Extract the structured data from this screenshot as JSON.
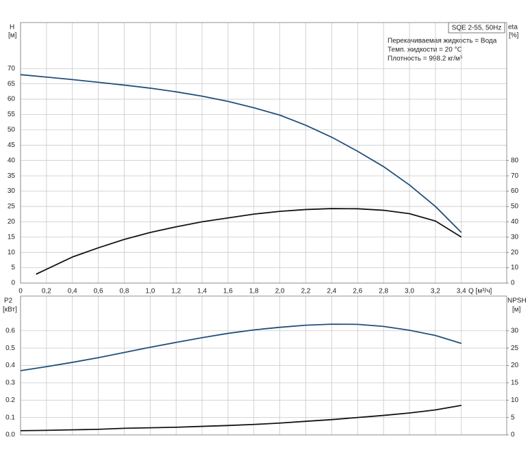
{
  "charts": [
    {
      "type": "line",
      "title": "SQE 2-55, 50Hz",
      "annotations": [
        "Перекачиваемая жидкость = Вода",
        "Темп. жидкости = 20 °C",
        "Плотность = 998.2 кг/м³"
      ],
      "ylabel": "H",
      "yunit": "[м]",
      "y2label": "eta",
      "y2unit": "[%]",
      "xlabel": "Q [м³/ч]",
      "xlim": [
        0,
        3.75
      ],
      "ylim": [
        0,
        85
      ],
      "y2lim": [
        0,
        170
      ],
      "xticks": [
        0,
        {
          "value": 0.2,
          "label": "0,2"
        },
        {
          "value": 0.4,
          "label": "0,4"
        },
        {
          "value": 0.6,
          "label": "0,6"
        },
        {
          "value": 0.8,
          "label": "0,8"
        },
        {
          "value": 1.0,
          "label": "1,0"
        },
        {
          "value": 1.2,
          "label": "1,2"
        },
        {
          "value": 1.4,
          "label": "1,4"
        },
        {
          "value": 1.6,
          "label": "1,6"
        },
        {
          "value": 1.8,
          "label": "1,8"
        },
        {
          "value": 2.0,
          "label": "2,0"
        },
        {
          "value": 2.2,
          "label": "2,2"
        },
        {
          "value": 2.4,
          "label": "2,4"
        },
        {
          "value": 2.6,
          "label": "2,6"
        },
        {
          "value": 2.8,
          "label": "2,8"
        },
        {
          "value": 3.0,
          "label": "3,0"
        },
        {
          "value": 3.2,
          "label": "3,2"
        },
        {
          "value": 3.4,
          "label": "3,4"
        }
      ],
      "yticks": [
        0,
        5,
        10,
        15,
        20,
        25,
        30,
        35,
        40,
        45,
        50,
        55,
        60,
        65,
        70
      ],
      "y2ticks": [
        0,
        10,
        20,
        30,
        40,
        50,
        60,
        70,
        80
      ],
      "show_xtick_labels": true,
      "grid": true,
      "series": [
        {
          "color": "#1f4e79",
          "x": [
            0,
            0.2,
            0.4,
            0.6,
            0.8,
            1.0,
            1.2,
            1.4,
            1.6,
            1.8,
            2.0,
            2.2,
            2.4,
            2.6,
            2.8,
            3.0,
            3.2,
            3.4
          ],
          "values": [
            68,
            67.2,
            66.4,
            65.5,
            64.6,
            63.6,
            62.4,
            61,
            59.3,
            57.2,
            54.8,
            51.5,
            47.6,
            43,
            38,
            32,
            25,
            16.5
          ]
        },
        {
          "color": "#111111",
          "axis": "y2",
          "x": [
            0.12,
            0.2,
            0.4,
            0.6,
            0.8,
            1.0,
            1.2,
            1.4,
            1.6,
            1.8,
            2.0,
            2.2,
            2.4,
            2.6,
            2.8,
            3.0,
            3.2,
            3.4
          ],
          "values": [
            5.8,
            9,
            17,
            23,
            28.5,
            33,
            36.7,
            40,
            42.5,
            45,
            46.8,
            48,
            48.6,
            48.5,
            47.5,
            45.3,
            40.5,
            30
          ]
        }
      ]
    },
    {
      "type": "line",
      "ylabel": "P2",
      "yunit": "[кВт]",
      "y2label": "NPSH",
      "y2unit": "[м]",
      "xlim": [
        0,
        3.75
      ],
      "ylim": [
        0,
        0.8
      ],
      "y2lim": [
        0,
        40
      ],
      "xticks": [
        0,
        0.2,
        0.4,
        0.6,
        0.8,
        1.0,
        1.2,
        1.4,
        1.6,
        1.8,
        2.0,
        2.2,
        2.4,
        2.6,
        2.8,
        3.0,
        3.2,
        3.4
      ],
      "show_xtick_labels": false,
      "grid": true,
      "yticks": [
        {
          "value": 0,
          "label": "0.0"
        },
        0.1,
        0.2,
        0.3,
        0.4,
        0.5,
        0.6
      ],
      "y2ticks": [
        0,
        5,
        10,
        15,
        20,
        25,
        30
      ],
      "series": [
        {
          "color": "#1f4e79",
          "x": [
            0,
            0.2,
            0.4,
            0.6,
            0.8,
            1.0,
            1.2,
            1.4,
            1.6,
            1.8,
            2.0,
            2.2,
            2.4,
            2.6,
            2.8,
            3.0,
            3.2,
            3.4
          ],
          "values": [
            0.37,
            0.393,
            0.418,
            0.445,
            0.475,
            0.505,
            0.533,
            0.56,
            0.585,
            0.605,
            0.62,
            0.632,
            0.638,
            0.637,
            0.625,
            0.603,
            0.573,
            0.527
          ]
        },
        {
          "color": "#111111",
          "axis": "y2",
          "x": [
            0,
            0.2,
            0.4,
            0.6,
            0.8,
            1.0,
            1.2,
            1.4,
            1.6,
            1.8,
            2.0,
            2.2,
            2.4,
            2.6,
            2.8,
            3.0,
            3.2,
            3.4
          ],
          "values": [
            1.2,
            1.3,
            1.45,
            1.6,
            1.9,
            2.05,
            2.2,
            2.45,
            2.7,
            3.0,
            3.4,
            3.9,
            4.4,
            5.0,
            5.6,
            6.3,
            7.2,
            8.5
          ]
        }
      ]
    }
  ]
}
